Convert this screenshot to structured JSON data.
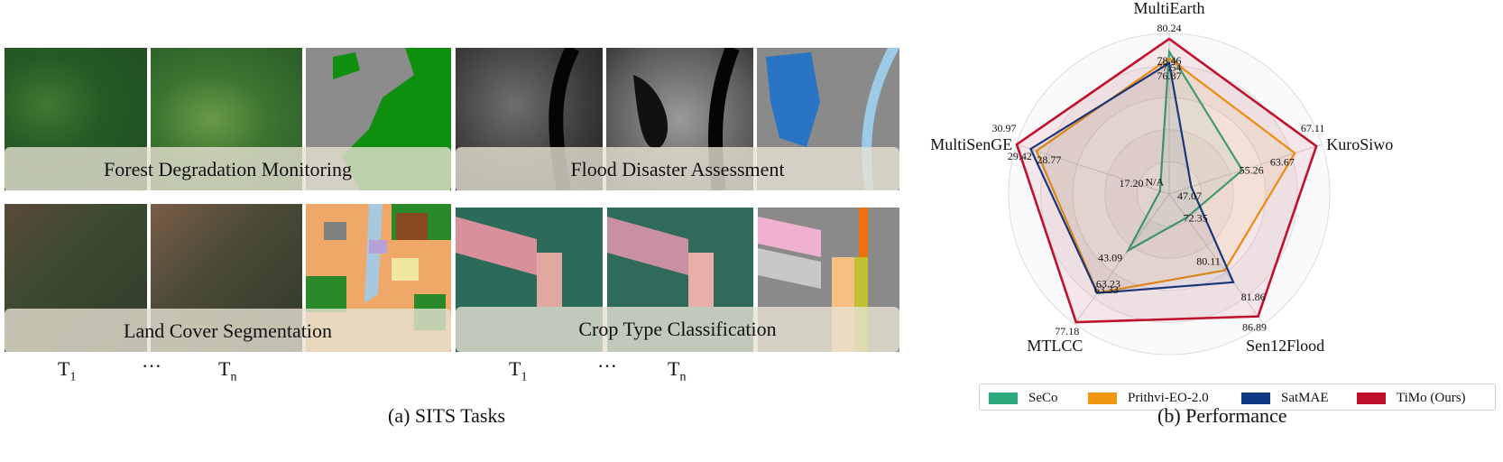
{
  "panel_a": {
    "caption": "(a) SITS Tasks",
    "tasks": [
      {
        "name": "Forest Degradation Monitoring"
      },
      {
        "name": "Flood Disaster Assessment"
      },
      {
        "name": "Land Cover Segmentation"
      },
      {
        "name": "Crop Type Classification"
      }
    ],
    "time_labels": {
      "t_base": "T",
      "t_first_sub": "1",
      "ellipsis": "···",
      "t_last_sub": "n"
    }
  },
  "chart_data": {
    "type": "radar",
    "caption": "(b) Performance",
    "axes": [
      "MultiEarth",
      "KuroSiwo",
      "Sen12Flood",
      "MTLCC",
      "MultiSenGE"
    ],
    "axis_ranges": [
      [
        60,
        81
      ],
      [
        45,
        68
      ],
      [
        70,
        88
      ],
      [
        20,
        78
      ],
      [
        15,
        31
      ]
    ],
    "series": [
      {
        "name": "SeCo",
        "color": "#2aa97a",
        "values": [
          78.46,
          55.26,
          72.35,
          43.09,
          null
        ],
        "labels": [
          "78.46",
          "55.26",
          "72.35",
          "43.09",
          "N/A"
        ]
      },
      {
        "name": "Prithvi-EO-2.0",
        "color": "#f0960f",
        "values": [
          77.54,
          63.67,
          80.11,
          63.23,
          28.77
        ],
        "labels": [
          "77.54",
          "63.67",
          "80.11",
          "63.23",
          "28.77"
        ]
      },
      {
        "name": "SatMAE",
        "color": "#0d3a82",
        "values": [
          76.87,
          47.07,
          81.86,
          63.33,
          29.42
        ],
        "labels": [
          "76.87",
          "47.07",
          "81.86",
          "63.33",
          "29.42"
        ]
      },
      {
        "name": "TiMo (Ours)",
        "color": "#c0102c",
        "values": [
          80.24,
          67.11,
          86.89,
          77.18,
          30.97
        ],
        "labels": [
          "80.24",
          "67.11",
          "86.89",
          "77.18",
          "30.97"
        ]
      }
    ],
    "extra_labels": [
      "17.20"
    ],
    "legend": "bottom"
  }
}
